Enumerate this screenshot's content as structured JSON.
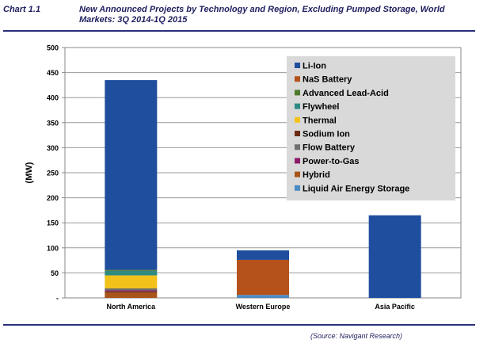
{
  "header": {
    "chart_label": "Chart 1.1",
    "title": "New Announced Projects by Technology and Region, Excluding Pumped Storage, World Markets: 3Q 2014-1Q 2015"
  },
  "footer": {
    "source": "(Source: Navigant Research)"
  },
  "chart_data": {
    "type": "bar",
    "stacked": true,
    "title": "",
    "xlabel": "",
    "ylabel": "(MW)",
    "ylim": [
      0,
      500
    ],
    "yticks": [
      0,
      50,
      100,
      150,
      200,
      250,
      300,
      350,
      400,
      450,
      500
    ],
    "ytick_labels": [
      "-",
      "50",
      "100",
      "150",
      "200",
      "250",
      "300",
      "350",
      "400",
      "450",
      "500"
    ],
    "grid": true,
    "legend_position": "top-right",
    "categories": [
      "North America",
      "Western Europe",
      "Asia Pacific"
    ],
    "series": [
      {
        "name": "Li-Ion",
        "color": "#1f4e9e",
        "values": [
          379,
          19,
          165
        ]
      },
      {
        "name": "NaS Battery",
        "color": "#b5521b",
        "values": [
          0,
          70,
          0
        ]
      },
      {
        "name": "Advanced Lead-Acid",
        "color": "#4e7a2a",
        "values": [
          2,
          0,
          0
        ]
      },
      {
        "name": "Flywheel",
        "color": "#2e8b84",
        "values": [
          9,
          0,
          0
        ]
      },
      {
        "name": "Thermal",
        "color": "#f2c21b",
        "values": [
          26,
          0,
          0
        ]
      },
      {
        "name": "Sodium Ion",
        "color": "#6b2a12",
        "values": [
          2,
          0,
          0
        ]
      },
      {
        "name": "Flow Battery",
        "color": "#6f6f6f",
        "values": [
          4,
          0,
          0
        ]
      },
      {
        "name": "Power-to-Gas",
        "color": "#8b1c6b",
        "values": [
          2,
          0,
          0
        ]
      },
      {
        "name": "Hybrid",
        "color": "#a8541a",
        "values": [
          11,
          0,
          0
        ]
      },
      {
        "name": "Liquid Air Energy Storage",
        "color": "#4a8bc4",
        "values": [
          0,
          6,
          0
        ]
      }
    ]
  }
}
